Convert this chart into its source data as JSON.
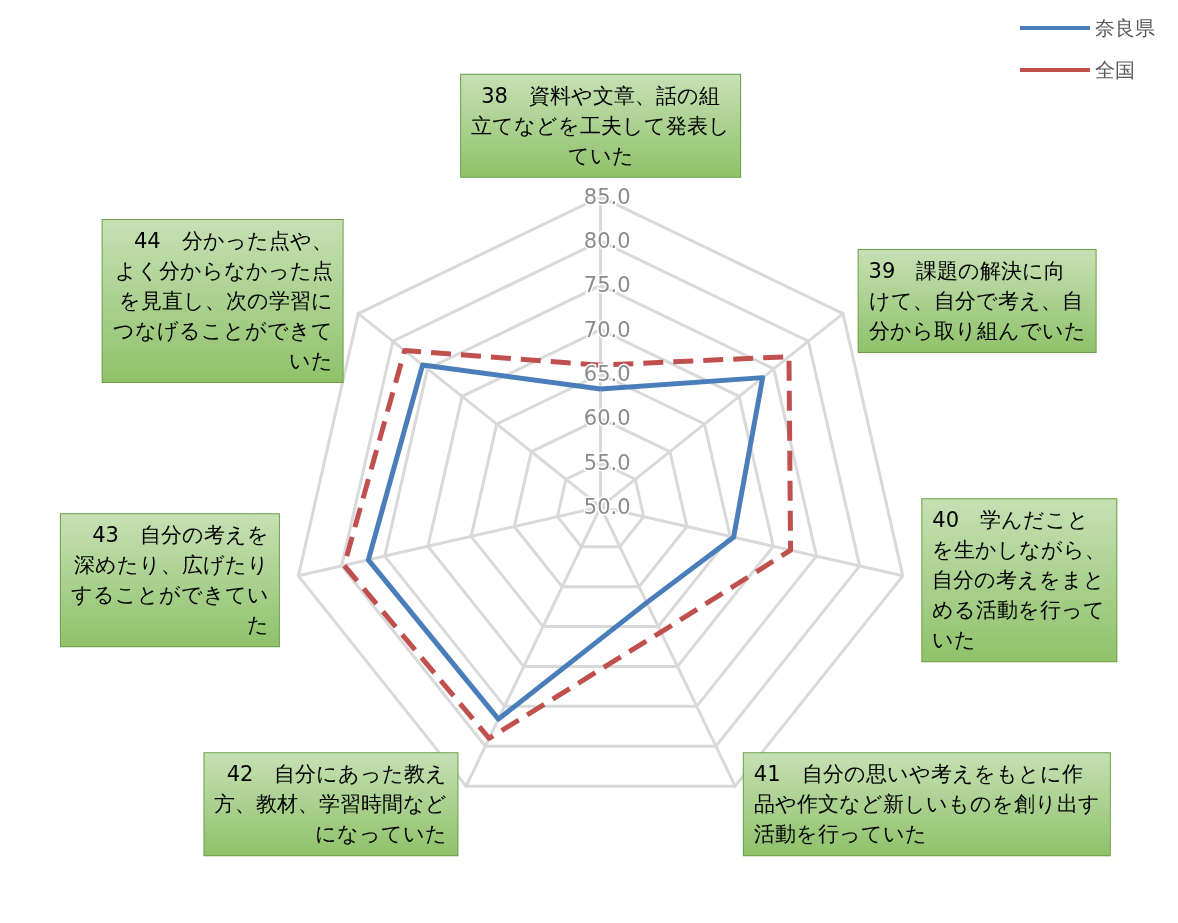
{
  "chart_data": {
    "type": "radar",
    "categories": [
      "38　資料や文章、話の組立てなどを工夫して発表していた",
      "39　課題の解決に向けて、自分で考え、自分から取り組んでいた",
      "40　学んだことを生かしながら、自分の考えをまとめる活動を行っていた",
      "41　自分の思いや考えをもとに作品や作文など新しいものを創り出す活動を行っていた",
      "42　自分にあった教え方、教材、学習時間などになっていた",
      "43　自分の考えを深めたり、広げたりすることができていた",
      "44　分かった点や、よく分からなかった点を見直し、次の学習につなげることができていた"
    ],
    "series": [
      {
        "name": "奈良県",
        "color": "#4a7ebb",
        "line_style": "solid",
        "values": [
          63.3,
          73.4,
          65.4,
          62.0,
          76.6,
          76.9,
          75.7
        ]
      },
      {
        "name": "全国",
        "color": "#c0504d",
        "line_style": "dashed",
        "values": [
          66.0,
          77.2,
          72.0,
          65.7,
          79.0,
          79.7,
          78.3
        ]
      }
    ],
    "ylim": [
      50,
      85
    ],
    "yticks": [
      {
        "value": 50,
        "label": "50.0"
      },
      {
        "value": 55,
        "label": "55.0"
      },
      {
        "value": 60,
        "label": "60.0"
      },
      {
        "value": 65,
        "label": "65.0"
      },
      {
        "value": 70,
        "label": "70.0"
      },
      {
        "value": 75,
        "label": "75.0"
      },
      {
        "value": 80,
        "label": "80.0"
      },
      {
        "value": 85,
        "label": "85.0"
      }
    ],
    "grid": true,
    "legend": "top right",
    "marker": "none"
  }
}
